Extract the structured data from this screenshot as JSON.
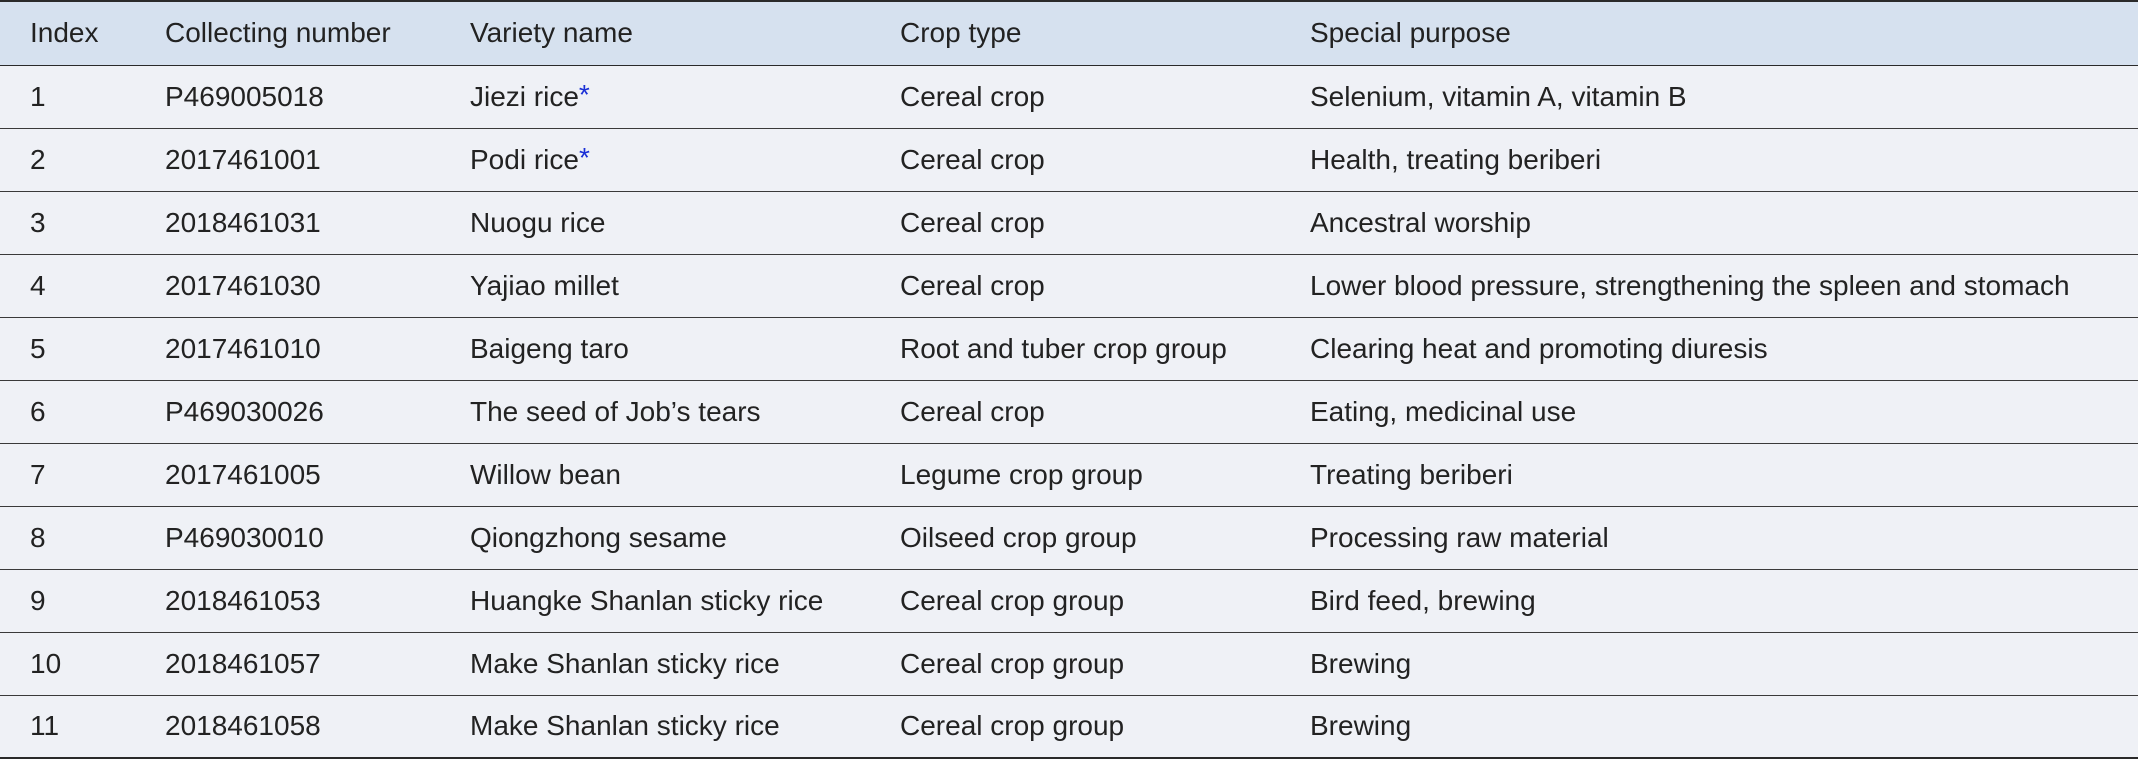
{
  "table": {
    "headers": [
      "Index",
      "Collecting number",
      "Variety name",
      "Crop type",
      "Special purpose"
    ],
    "rows": [
      {
        "index": "1",
        "collecting_number": "P469005018",
        "variety_name": "Jiezi rice",
        "mark": "*",
        "crop_type": "Cereal crop",
        "special_purpose": "Selenium, vitamin A, vitamin B"
      },
      {
        "index": "2",
        "collecting_number": "2017461001",
        "variety_name": "Podi rice",
        "mark": "*",
        "crop_type": "Cereal crop",
        "special_purpose": "Health, treating beriberi"
      },
      {
        "index": "3",
        "collecting_number": "2018461031",
        "variety_name": "Nuogu rice",
        "mark": "",
        "crop_type": "Cereal crop",
        "special_purpose": "Ancestral worship"
      },
      {
        "index": "4",
        "collecting_number": "2017461030",
        "variety_name": "Yajiao millet",
        "mark": "",
        "crop_type": "Cereal crop",
        "special_purpose": "Lower blood pressure, strengthening the spleen and stomach"
      },
      {
        "index": "5",
        "collecting_number": "2017461010",
        "variety_name": "Baigeng taro",
        "mark": "",
        "crop_type": "Root and tuber crop group",
        "special_purpose": "Clearing heat and promoting diuresis"
      },
      {
        "index": "6",
        "collecting_number": "P469030026",
        "variety_name": "The seed of Job’s tears",
        "mark": "",
        "crop_type": "Cereal crop",
        "special_purpose": "Eating, medicinal use"
      },
      {
        "index": "7",
        "collecting_number": "2017461005",
        "variety_name": "Willow bean",
        "mark": "",
        "crop_type": "Legume crop group",
        "special_purpose": "Treating beriberi"
      },
      {
        "index": "8",
        "collecting_number": "P469030010",
        "variety_name": "Qiongzhong sesame",
        "mark": "",
        "crop_type": "Oilseed crop group",
        "special_purpose": "Processing raw material"
      },
      {
        "index": "9",
        "collecting_number": "2018461053",
        "variety_name": "Huangke Shanlan sticky rice",
        "mark": "",
        "crop_type": "Cereal crop group",
        "special_purpose": "Bird feed, brewing"
      },
      {
        "index": "10",
        "collecting_number": "2018461057",
        "variety_name": "Make Shanlan sticky rice",
        "mark": "",
        "crop_type": "Cereal crop group",
        "special_purpose": "Brewing"
      },
      {
        "index": "11",
        "collecting_number": "2018461058",
        "variety_name": "Make Shanlan sticky rice",
        "mark": "",
        "crop_type": "Cereal crop group",
        "special_purpose": "Brewing"
      }
    ]
  }
}
